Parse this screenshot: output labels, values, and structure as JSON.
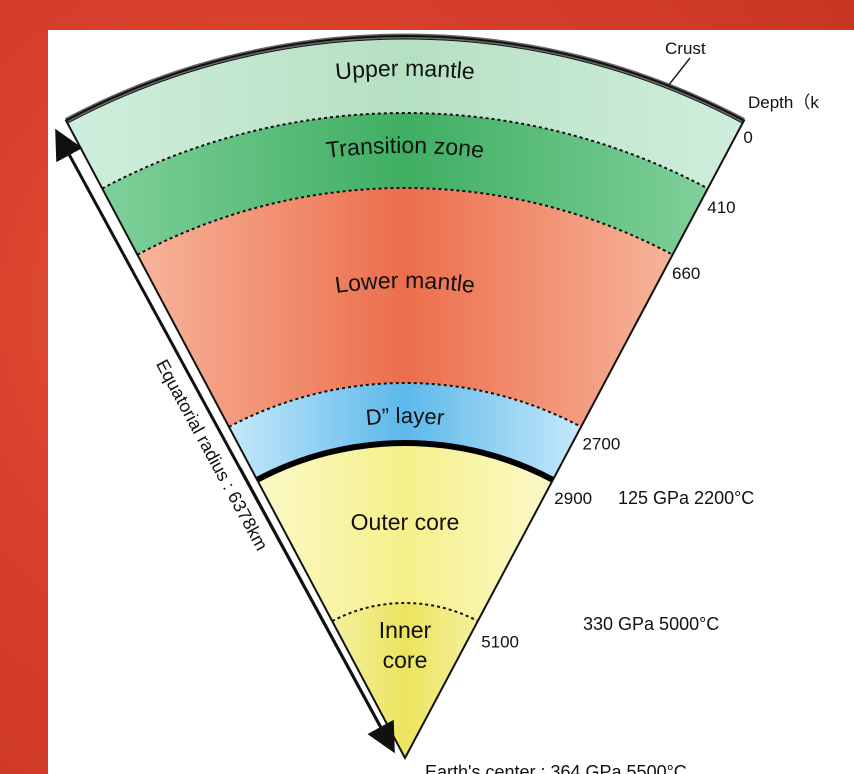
{
  "title_crust": "Crust",
  "depth_heading": "Depth（k",
  "layers": [
    {
      "label": "Upper mantle"
    },
    {
      "label": "Transition zone"
    },
    {
      "label": "Lower mantle"
    },
    {
      "label": "D” layer"
    },
    {
      "label": "Outer core"
    },
    {
      "label": "Inner core",
      "lines": [
        "Inner",
        "core"
      ]
    }
  ],
  "depths": [
    "0",
    "410",
    "660",
    "2700",
    "2900",
    "5100"
  ],
  "conditions": {
    "outer_core_top": "125 GPa 2200°C",
    "inner_core_top": "330 GPa 5000°C",
    "center": "Earth's center : 364 GPa 5500°C"
  },
  "radius_label": "Equatorial radius : 6378km"
}
